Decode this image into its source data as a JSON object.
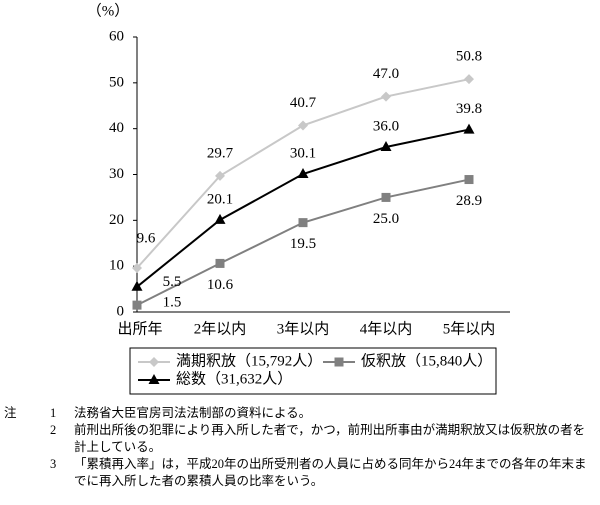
{
  "chart_data": {
    "type": "line",
    "y_label": "（%）",
    "categories": [
      "出所年",
      "2年以内",
      "3年以内",
      "4年以内",
      "5年以内"
    ],
    "series": [
      {
        "name": "満期釈放（15,792人）",
        "color": "#c8c8c8",
        "marker": "diamond",
        "values": [
          9.6,
          29.7,
          40.7,
          47.0,
          50.8
        ],
        "value_labels": [
          "9.6",
          "29.7",
          "40.7",
          "47.0",
          "50.8"
        ]
      },
      {
        "name": "仮釈放（15,840人）",
        "color": "#808080",
        "marker": "square",
        "values": [
          1.5,
          10.6,
          19.5,
          25.0,
          28.9
        ],
        "value_labels": [
          "1.5",
          "10.6",
          "19.5",
          "25.0",
          "28.9"
        ]
      },
      {
        "name": "総数（31,632人）",
        "color": "#000000",
        "marker": "triangle",
        "values": [
          5.5,
          20.1,
          30.1,
          36.0,
          39.8
        ],
        "value_labels": [
          "5.5",
          "20.1",
          "30.1",
          "36.0",
          "39.8"
        ]
      }
    ],
    "ylim": [
      0,
      60
    ],
    "yticks": [
      0,
      10,
      20,
      30,
      40,
      50,
      60
    ]
  },
  "notes": {
    "label": "注",
    "items": [
      {
        "number": "1",
        "text": "法務省大臣官房司法法制部の資料による。"
      },
      {
        "number": "2",
        "text": "前刑出所後の犯罪により再入所した者で，かつ，前刑出所事由が満期釈放又は仮釈放の者を計上している。"
      },
      {
        "number": "3",
        "text": "「累積再入率」は，平成20年の出所受刑者の人員に占める同年から24年までの各年の年末までに再入所した者の累積人員の比率をいう。"
      }
    ]
  }
}
